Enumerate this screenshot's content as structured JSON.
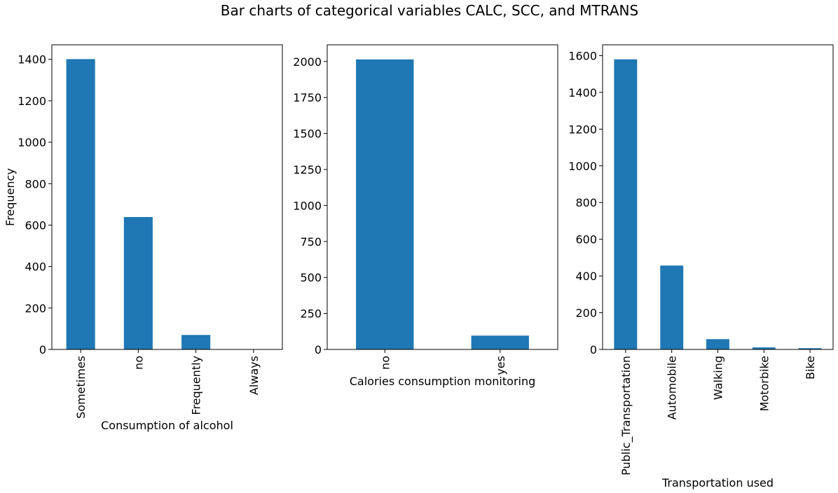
{
  "figure": {
    "title": "Bar charts of categorical variables CALC, SCC, and MTRANS"
  },
  "colors": {
    "bar": "#1f77b4",
    "axis": "#000000",
    "background": "#ffffff"
  },
  "chart_data": [
    {
      "type": "bar",
      "title": "",
      "xlabel": "Consumption of alcohol",
      "ylabel": "Frequency",
      "categories": [
        "Sometimes",
        "no",
        "Frequently",
        "Always"
      ],
      "values": [
        1401,
        639,
        70,
        1
      ],
      "ylim": [
        0,
        1470
      ],
      "yticks": [
        0,
        200,
        400,
        600,
        800,
        1000,
        1200,
        1400
      ],
      "tick_label_rotation": "vertical",
      "grid": false
    },
    {
      "type": "bar",
      "title": "",
      "xlabel": "Calories consumption monitoring",
      "ylabel": "",
      "categories": [
        "no",
        "yes"
      ],
      "values": [
        2015,
        96
      ],
      "ylim": [
        0,
        2116
      ],
      "yticks": [
        0,
        250,
        500,
        750,
        1000,
        1250,
        1500,
        1750,
        2000
      ],
      "tick_label_rotation": "vertical",
      "grid": false
    },
    {
      "type": "bar",
      "title": "",
      "xlabel": "Transportation used",
      "ylabel": "",
      "categories": [
        "Public_Transportation",
        "Automobile",
        "Walking",
        "Motorbike",
        "Bike"
      ],
      "values": [
        1580,
        457,
        56,
        11,
        7
      ],
      "ylim": [
        0,
        1659
      ],
      "yticks": [
        0,
        200,
        400,
        600,
        800,
        1000,
        1200,
        1400,
        1600
      ],
      "tick_label_rotation": "vertical",
      "grid": false
    }
  ]
}
